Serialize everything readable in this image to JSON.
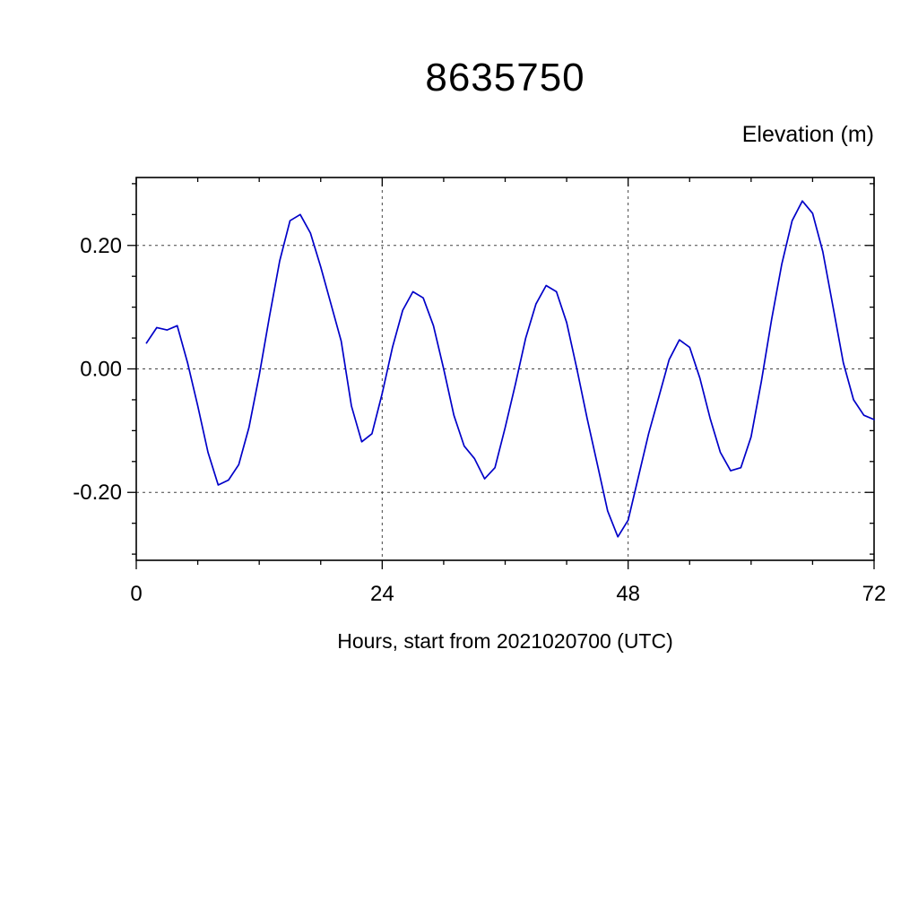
{
  "chart_data": {
    "type": "line",
    "title": "8635750",
    "ylabel": "Elevation (m)",
    "xlabel": "Hours, start from 2021020700 (UTC)",
    "xlim": [
      0,
      72
    ],
    "ylim": [
      -0.31,
      0.31
    ],
    "xticks_major": [
      0,
      24,
      48,
      72
    ],
    "xtick_labels": [
      "0",
      "24",
      "48",
      "72"
    ],
    "xticks_minor_step": 6,
    "yticks_major": [
      -0.2,
      0.0,
      0.2
    ],
    "ytick_labels": [
      "-0.20",
      "0.00",
      "0.20"
    ],
    "yticks_minor_step": 0.05,
    "x_gridlines": [
      24,
      48
    ],
    "y_gridlines": [
      -0.2,
      0.0,
      0.2
    ],
    "grid_on": true,
    "legend_position": "none",
    "line_color": "#0000c8",
    "frame_color": "#000000",
    "grid_color": "#444444",
    "x": [
      1,
      2,
      3,
      4,
      5,
      6,
      7,
      8,
      9,
      10,
      11,
      12,
      13,
      14,
      15,
      16,
      17,
      18,
      19,
      20,
      21,
      22,
      23,
      24,
      25,
      26,
      27,
      28,
      29,
      30,
      31,
      32,
      33,
      34,
      35,
      36,
      37,
      38,
      39,
      40,
      41,
      42,
      43,
      44,
      45,
      46,
      47,
      48,
      49,
      50,
      51,
      52,
      53,
      54,
      55,
      56,
      57,
      58,
      59,
      60,
      61,
      62,
      63,
      64,
      65,
      66,
      67,
      68,
      69,
      70,
      71,
      72
    ],
    "y": [
      0.042,
      0.067,
      0.063,
      0.07,
      0.01,
      -0.06,
      -0.135,
      -0.188,
      -0.18,
      -0.155,
      -0.095,
      -0.01,
      0.085,
      0.175,
      0.24,
      0.25,
      0.22,
      0.165,
      0.105,
      0.045,
      -0.06,
      -0.118,
      -0.105,
      -0.04,
      0.035,
      0.095,
      0.125,
      0.115,
      0.07,
      0.0,
      -0.075,
      -0.125,
      -0.145,
      -0.178,
      -0.16,
      -0.095,
      -0.025,
      0.05,
      0.105,
      0.135,
      0.125,
      0.075,
      0.0,
      -0.08,
      -0.155,
      -0.23,
      -0.272,
      -0.245,
      -0.175,
      -0.105,
      -0.045,
      0.015,
      0.047,
      0.035,
      -0.015,
      -0.08,
      -0.135,
      -0.165,
      -0.16,
      -0.11,
      -0.02,
      0.08,
      0.17,
      0.24,
      0.272,
      0.252,
      0.19,
      0.1,
      0.01,
      -0.05,
      -0.075,
      -0.082
    ]
  }
}
